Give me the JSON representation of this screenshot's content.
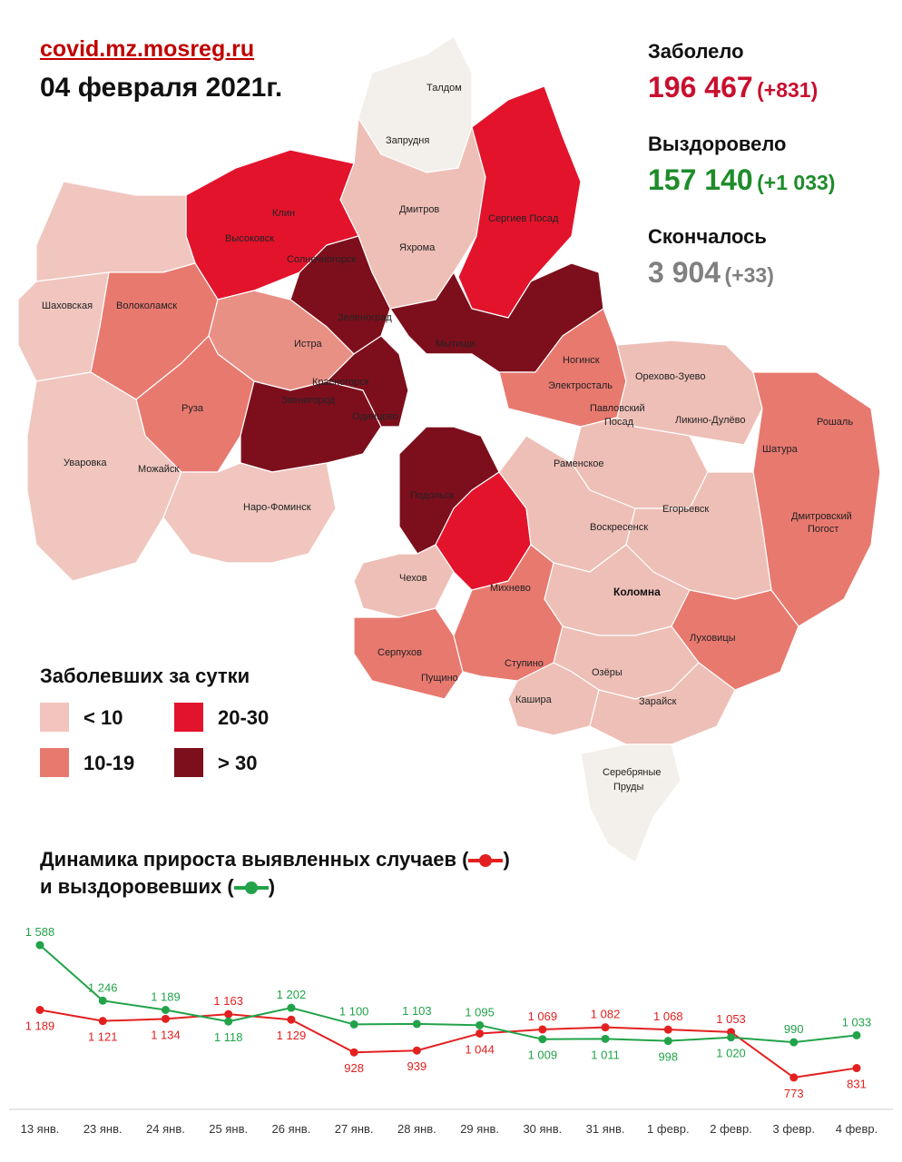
{
  "header": {
    "site": "covid.mz.mosreg.ru",
    "date": "04 февраля 2021г."
  },
  "stats": {
    "sick_label": "Заболело",
    "sick_total": "196 467",
    "sick_delta": "(+831)",
    "recovered_label": "Выздоровело",
    "recovered_total": "157 140",
    "recovered_delta": "(+1 033)",
    "died_label": "Скончалось",
    "died_total": "3 904",
    "died_delta": "(+33)"
  },
  "colors": {
    "sick": "#c8102e",
    "recovered": "#1e8c2a",
    "died": "#808080",
    "lt10": "#f2c4bd",
    "r10_19": "#e8796f",
    "r20_30": "#e3132c",
    "gt30": "#7d0f1c"
  },
  "legend": {
    "title": "Заболевших за сутки",
    "items": [
      {
        "label": "< 10",
        "color": "#f2c4bd"
      },
      {
        "label": "20-30",
        "color": "#e3132c"
      },
      {
        "label": "10-19",
        "color": "#e8796f"
      },
      {
        "label": "> 30",
        "color": "#7d0f1c"
      }
    ]
  },
  "map": {
    "labels": [
      "Талдом",
      "Запрудня",
      "Клин",
      "Высоковск",
      "Дмитров",
      "Яхрома",
      "Сергиев Посад",
      "Солнечногорск",
      "Шаховская",
      "Волоколамск",
      "Зеленоград",
      "Истра",
      "Мытищи",
      "Ногинск",
      "Орехово-Зуево",
      "Электросталь",
      "Павловский Посад",
      "Красногорск",
      "Звенигород",
      "Одинцово",
      "Руза",
      "Ликино-Дулёво",
      "Рошаль",
      "Шатура",
      "Раменское",
      "Уваровка",
      "Можайск",
      "Наро-Фоминск",
      "Подольск",
      "Егорьевск",
      "Дмитровский Погост",
      "Воскресенск",
      "Чехов",
      "Михнево",
      "Коломна",
      "Луховицы",
      "Серпухов",
      "Пущино",
      "Ступино",
      "Озёры",
      "Кашира",
      "Зарайск",
      "Серебряные Пруды"
    ]
  },
  "chart_title": {
    "line1_prefix": "Динамика прироста выявленных случаев (",
    "line1_suffix": ")",
    "line2_prefix": "и выздоровевших (",
    "line2_suffix": ")"
  },
  "chart_data": {
    "type": "line",
    "categories": [
      "13 янв.",
      "23 янв.",
      "24 янв.",
      "25 янв.",
      "26 янв.",
      "27 янв.",
      "28 янв.",
      "29 янв.",
      "30 янв.",
      "31 янв.",
      "1 февр.",
      "2 февр.",
      "3 февр.",
      "4 февр."
    ],
    "series": [
      {
        "color": "#e32020",
        "values": [
          1189,
          1121,
          1134,
          1163,
          1129,
          928,
          939,
          1044,
          1069,
          1082,
          1068,
          1053,
          773,
          831
        ],
        "labels": [
          "1 189",
          "1 121",
          "1 134",
          "1 163",
          "1 129",
          "928",
          "939",
          "1 044",
          "1 069",
          "1 082",
          "1 068",
          "1 053",
          "773",
          "831"
        ]
      },
      {
        "color": "#22a34a",
        "values": [
          1588,
          1246,
          1189,
          1118,
          1202,
          1100,
          1103,
          1095,
          1009,
          1011,
          998,
          1020,
          990,
          1033
        ],
        "labels": [
          "1 588",
          "1 246",
          "1 189",
          "1 118",
          "1 202",
          "1 100",
          "1 103",
          "1 095",
          "1 009",
          "1 011",
          "998",
          "1 020",
          "990",
          "1 033"
        ]
      }
    ],
    "ylim": [
      700,
      1650
    ],
    "grid": false,
    "legend": "none"
  }
}
